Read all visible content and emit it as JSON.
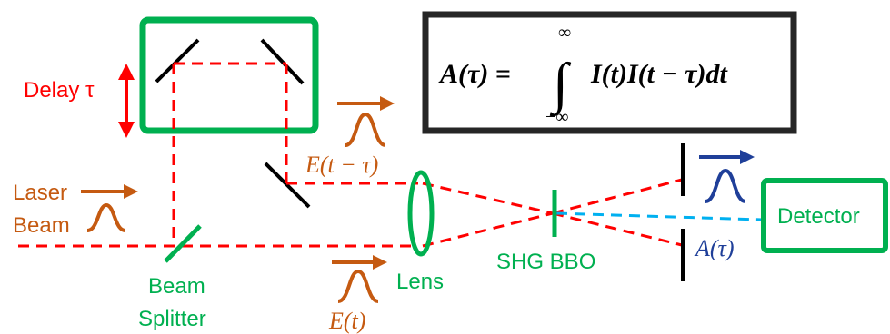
{
  "labels": {
    "delay": "Delay τ",
    "laser_line1": "Laser",
    "laser_line2": "Beam",
    "beam_splitter_line1": "Beam",
    "beam_splitter_line2": "Splitter",
    "lens": "Lens",
    "shg_bbo": "SHG BBO",
    "detector": "Detector"
  },
  "fields": {
    "delayed_field": "E(t − τ)",
    "field": "E(t)",
    "autocorrelation": "A(τ)"
  },
  "formula": {
    "lhs": "A(τ) =",
    "integrand": "I(t)I(t − τ)dt",
    "upper_limit": "∞",
    "lower_limit": "−∞"
  },
  "colors": {
    "beam": "#ff0000",
    "component": "#00b050",
    "pulse": "#c55a11",
    "signal": "#1f3f99",
    "detector_beam": "#00b0f0"
  }
}
